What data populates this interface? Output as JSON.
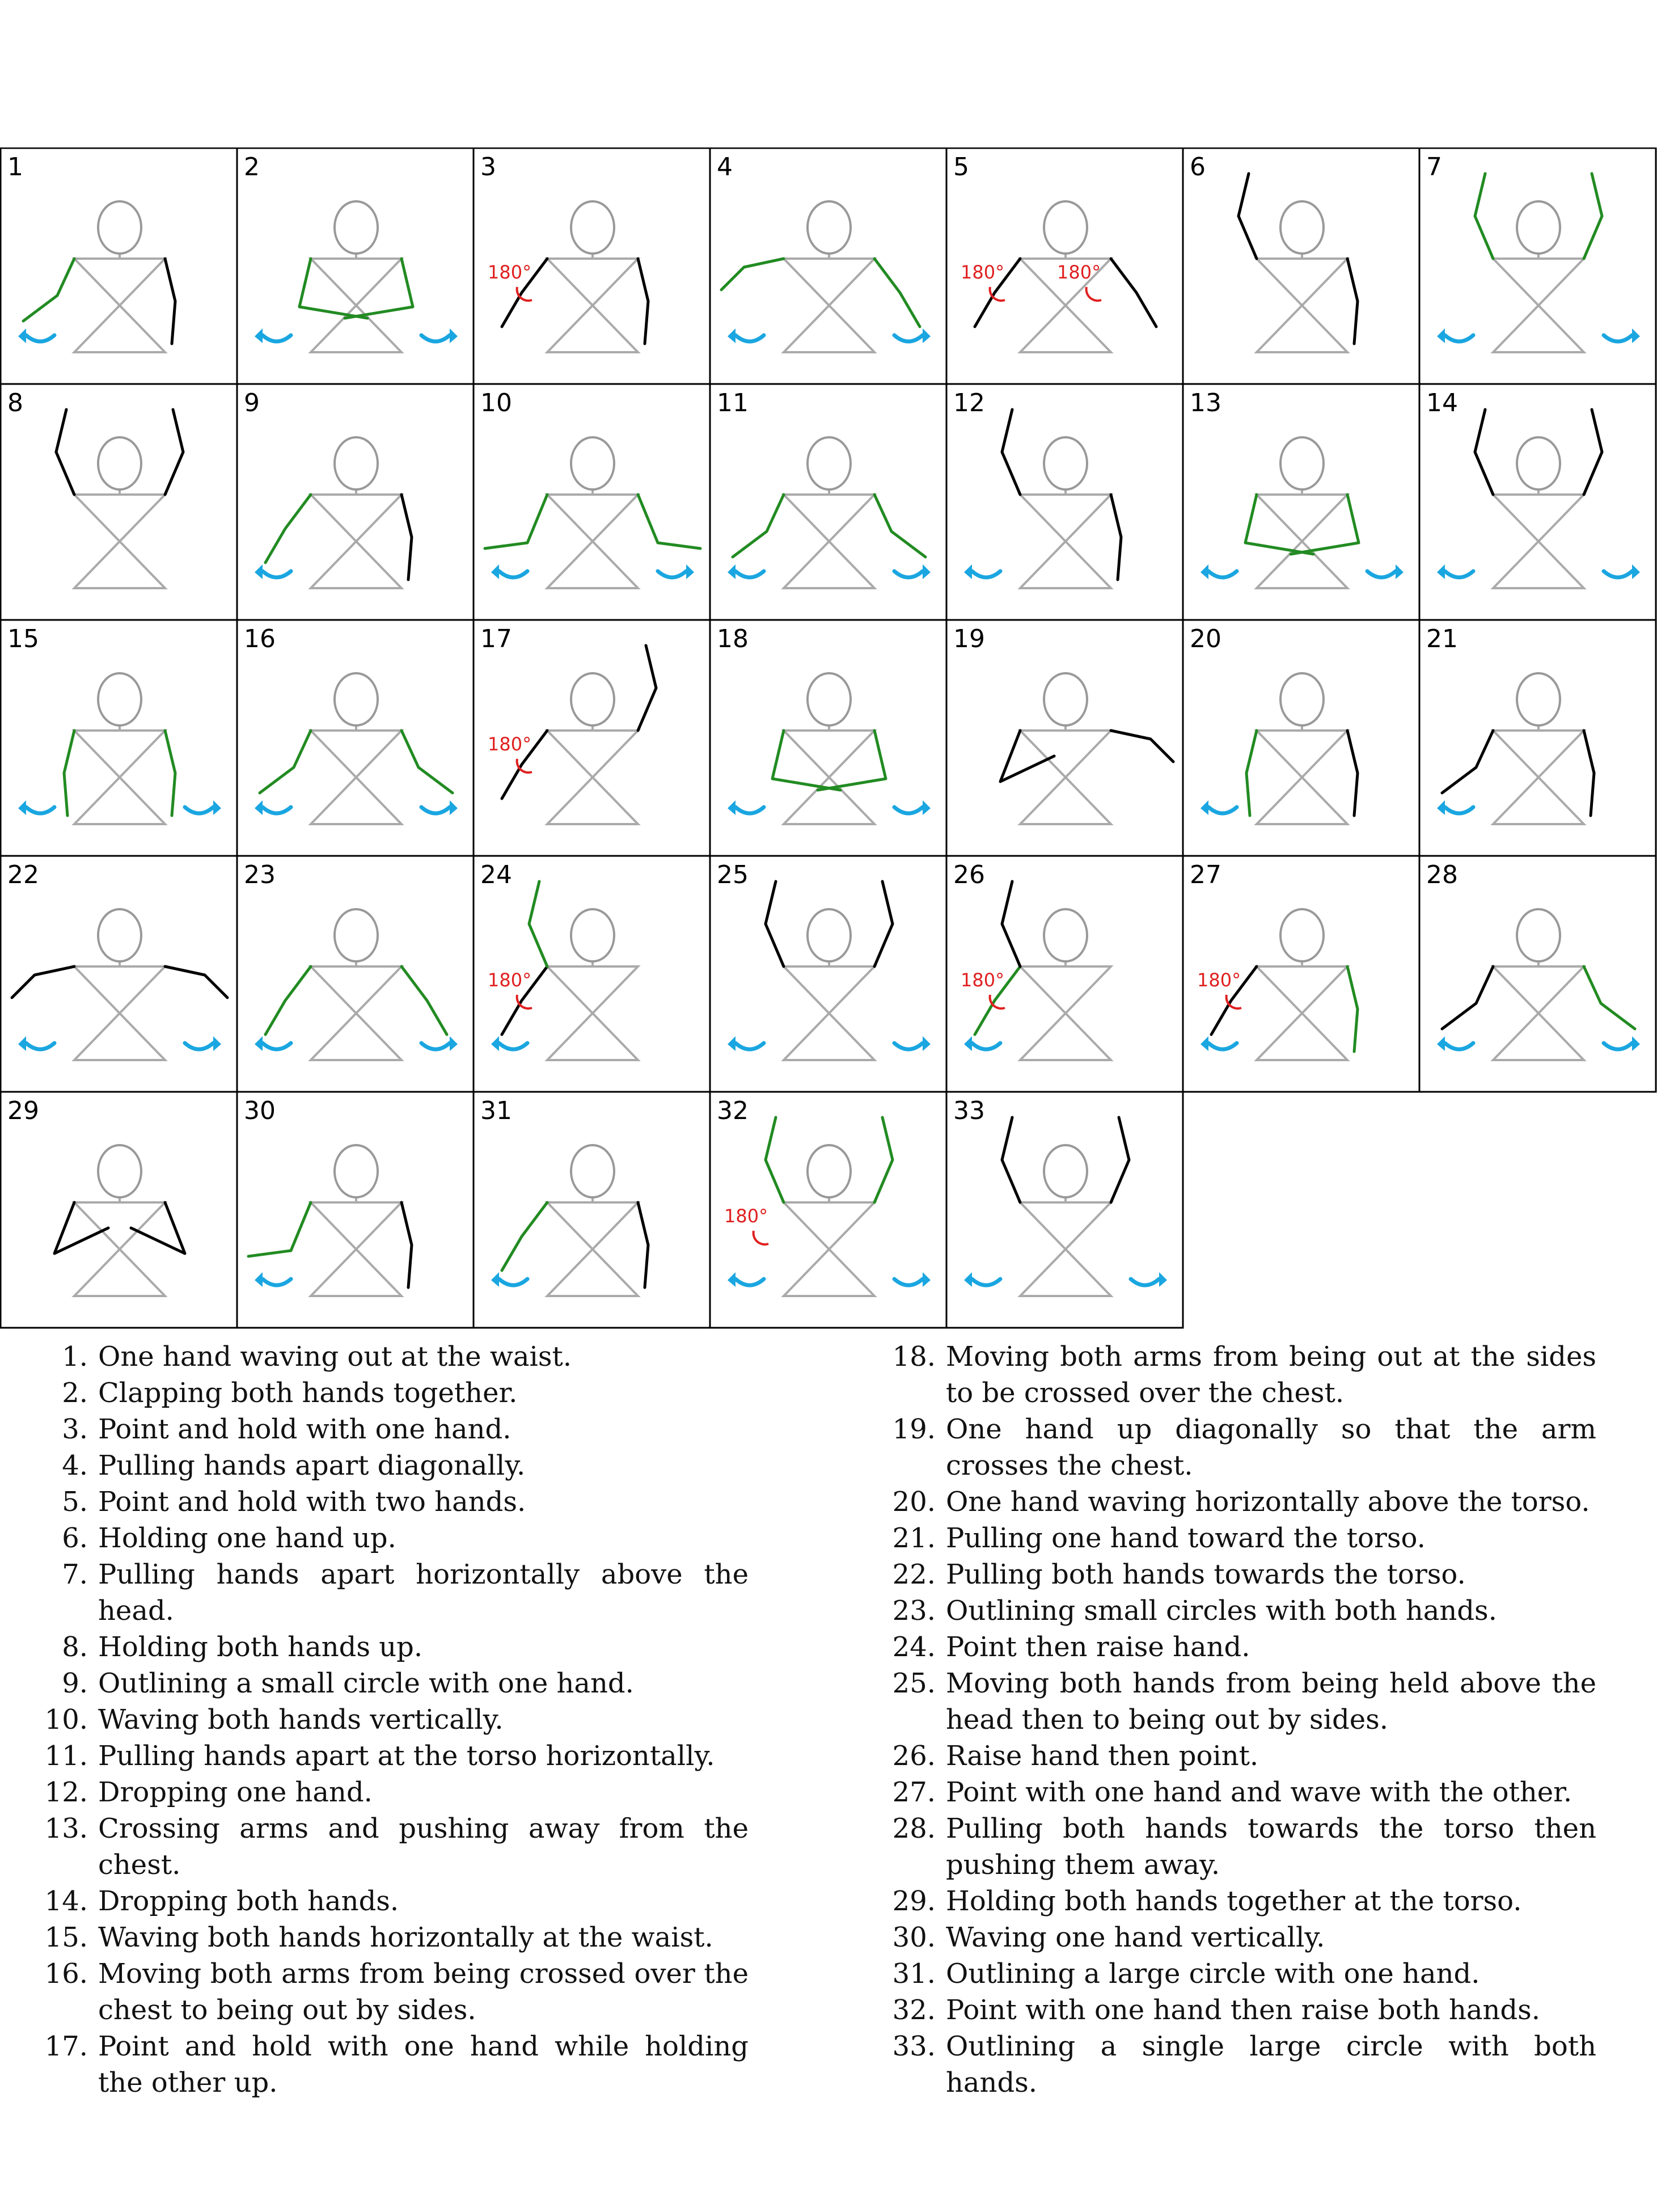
{
  "colors": {
    "body": "#aaaaaa",
    "head": "#999999",
    "arm_black": "#000000",
    "arm_green": "#228b22",
    "arrow": "#1aa6e0",
    "angle": "#e02020",
    "grid": "#000000"
  },
  "angle_text": "180°",
  "cells": [
    {
      "num": "1",
      "arrows": 1
    },
    {
      "num": "2",
      "arrows": 2
    },
    {
      "num": "3",
      "angle": 1
    },
    {
      "num": "4",
      "arrows": 2
    },
    {
      "num": "5",
      "angle": 2
    },
    {
      "num": "6"
    },
    {
      "num": "7",
      "arrows": 2
    },
    {
      "num": "8"
    },
    {
      "num": "9",
      "arrows": 1
    },
    {
      "num": "10",
      "arrows": 2
    },
    {
      "num": "11",
      "arrows": 2
    },
    {
      "num": "12",
      "arrows": 1
    },
    {
      "num": "13",
      "arrows": 2
    },
    {
      "num": "14",
      "arrows": 2
    },
    {
      "num": "15",
      "arrows": 2
    },
    {
      "num": "16",
      "arrows": 2
    },
    {
      "num": "17",
      "angle": 1
    },
    {
      "num": "18",
      "arrows": 2
    },
    {
      "num": "19"
    },
    {
      "num": "20",
      "arrows": 1
    },
    {
      "num": "21",
      "arrows": 1
    },
    {
      "num": "22",
      "arrows": 2
    },
    {
      "num": "23",
      "arrows": 2
    },
    {
      "num": "24",
      "angle": 1,
      "arrows": 1
    },
    {
      "num": "25",
      "arrows": 2
    },
    {
      "num": "26",
      "angle": 1,
      "arrows": 1
    },
    {
      "num": "27",
      "angle": 1,
      "arrows": 1
    },
    {
      "num": "28",
      "arrows": 2
    },
    {
      "num": "29"
    },
    {
      "num": "30",
      "arrows": 1
    },
    {
      "num": "31",
      "arrows": 1
    },
    {
      "num": "32",
      "angle": 1,
      "arrows": 2
    },
    {
      "num": "33",
      "arrows": 2
    }
  ],
  "captions": [
    {
      "n": "1.",
      "t": "One hand waving out at the waist."
    },
    {
      "n": "2.",
      "t": "Clapping both hands together."
    },
    {
      "n": "3.",
      "t": "Point and hold with one hand."
    },
    {
      "n": "4.",
      "t": "Pulling hands apart diagonally."
    },
    {
      "n": "5.",
      "t": "Point and hold with two hands."
    },
    {
      "n": "6.",
      "t": "Holding one hand up."
    },
    {
      "n": "7.",
      "t": "Pulling hands apart horizontally above the head."
    },
    {
      "n": "8.",
      "t": "Holding both hands up."
    },
    {
      "n": "9.",
      "t": "Outlining a small circle with one hand."
    },
    {
      "n": "10.",
      "t": "Waving both hands vertically."
    },
    {
      "n": "11.",
      "t": "Pulling hands apart at the torso horizontally."
    },
    {
      "n": "12.",
      "t": "Dropping one hand."
    },
    {
      "n": "13.",
      "t": "Crossing arms and pushing away from the chest."
    },
    {
      "n": "14.",
      "t": "Dropping both hands."
    },
    {
      "n": "15.",
      "t": "Waving both hands horizontally at the waist."
    },
    {
      "n": "16.",
      "t": "Moving both arms from being crossed over the chest to being out by sides."
    },
    {
      "n": "17.",
      "t": "Point and hold with one hand while holding the other up."
    },
    {
      "n": "18.",
      "t": "Moving both arms from being out at the sides to be crossed over the chest."
    },
    {
      "n": "19.",
      "t": "One hand up diagonally so that the arm crosses the chest."
    },
    {
      "n": "20.",
      "t": "One hand waving horizontally above the torso."
    },
    {
      "n": "21.",
      "t": "Pulling one hand toward the torso."
    },
    {
      "n": "22.",
      "t": "Pulling both hands towards the torso."
    },
    {
      "n": "23.",
      "t": "Outlining small circles with both hands."
    },
    {
      "n": "24.",
      "t": "Point then raise hand."
    },
    {
      "n": "25.",
      "t": "Moving both hands from being held above the head then to being out by sides."
    },
    {
      "n": "26.",
      "t": "Raise hand then point."
    },
    {
      "n": "27.",
      "t": "Point with one hand and wave with the other."
    },
    {
      "n": "28.",
      "t": "Pulling both hands towards the torso then pushing them away."
    },
    {
      "n": "29.",
      "t": "Holding both hands together at the torso."
    },
    {
      "n": "30.",
      "t": "Waving one hand vertically."
    },
    {
      "n": "31.",
      "t": "Outlining a large circle with one hand."
    },
    {
      "n": "32.",
      "t": "Point with one hand then raise both hands."
    },
    {
      "n": "33.",
      "t": "Outlining a single large circle with both hands."
    }
  ]
}
